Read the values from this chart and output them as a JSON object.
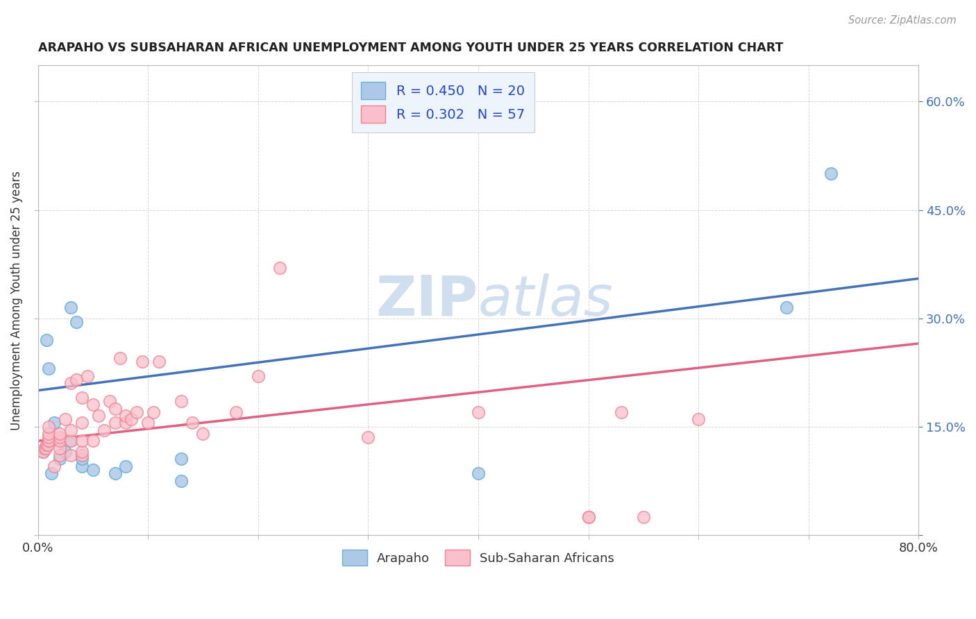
{
  "title": "ARAPAHO VS SUBSAHARAN AFRICAN UNEMPLOYMENT AMONG YOUTH UNDER 25 YEARS CORRELATION CHART",
  "source": "Source: ZipAtlas.com",
  "ylabel": "Unemployment Among Youth under 25 years",
  "xlim": [
    0.0,
    0.8
  ],
  "ylim": [
    0.0,
    0.65
  ],
  "xtick_positions": [
    0.0,
    0.1,
    0.2,
    0.3,
    0.4,
    0.5,
    0.6,
    0.7,
    0.8
  ],
  "xtick_labels": [
    "0.0%",
    "",
    "",
    "",
    "",
    "",
    "",
    "",
    "80.0%"
  ],
  "ytick_positions": [
    0.0,
    0.15,
    0.3,
    0.45,
    0.6
  ],
  "ytick_labels_left": [
    "",
    "",
    "",
    "",
    ""
  ],
  "ytick_labels_right": [
    "",
    "15.0%",
    "30.0%",
    "45.0%",
    "60.0%"
  ],
  "arapaho_R": 0.45,
  "arapaho_N": 20,
  "subsaharan_R": 0.302,
  "subsaharan_N": 57,
  "arapaho_color": "#aec9e8",
  "arapaho_edge_color": "#6aaed6",
  "subsaharan_color": "#f9c0cb",
  "subsaharan_edge_color": "#f08090",
  "blue_line_color": "#4472b8",
  "pink_line_color": "#e06080",
  "watermark_color": "#d0dff0",
  "blue_line_x0": 0.0,
  "blue_line_y0": 0.2,
  "blue_line_x1": 0.8,
  "blue_line_y1": 0.355,
  "pink_line_x0": 0.0,
  "pink_line_y0": 0.13,
  "pink_line_x1": 0.8,
  "pink_line_y1": 0.265,
  "arapaho_x": [
    0.005,
    0.008,
    0.01,
    0.012,
    0.015,
    0.02,
    0.025,
    0.03,
    0.03,
    0.035,
    0.04,
    0.04,
    0.05,
    0.07,
    0.08,
    0.13,
    0.13,
    0.4,
    0.68,
    0.72
  ],
  "arapaho_y": [
    0.115,
    0.27,
    0.23,
    0.085,
    0.155,
    0.105,
    0.115,
    0.13,
    0.315,
    0.295,
    0.095,
    0.105,
    0.09,
    0.085,
    0.095,
    0.075,
    0.105,
    0.085,
    0.315,
    0.5
  ],
  "subsaharan_x": [
    0.005,
    0.006,
    0.007,
    0.008,
    0.009,
    0.01,
    0.01,
    0.01,
    0.01,
    0.01,
    0.015,
    0.02,
    0.02,
    0.02,
    0.02,
    0.02,
    0.025,
    0.03,
    0.03,
    0.03,
    0.03,
    0.035,
    0.04,
    0.04,
    0.04,
    0.04,
    0.04,
    0.045,
    0.05,
    0.05,
    0.055,
    0.06,
    0.065,
    0.07,
    0.07,
    0.075,
    0.08,
    0.08,
    0.085,
    0.09,
    0.095,
    0.1,
    0.105,
    0.11,
    0.13,
    0.14,
    0.15,
    0.18,
    0.2,
    0.22,
    0.3,
    0.4,
    0.5,
    0.5,
    0.53,
    0.55,
    0.6
  ],
  "subsaharan_y": [
    0.115,
    0.12,
    0.12,
    0.125,
    0.125,
    0.13,
    0.13,
    0.135,
    0.14,
    0.15,
    0.095,
    0.11,
    0.12,
    0.13,
    0.135,
    0.14,
    0.16,
    0.11,
    0.13,
    0.145,
    0.21,
    0.215,
    0.11,
    0.115,
    0.13,
    0.155,
    0.19,
    0.22,
    0.13,
    0.18,
    0.165,
    0.145,
    0.185,
    0.155,
    0.175,
    0.245,
    0.155,
    0.165,
    0.16,
    0.17,
    0.24,
    0.155,
    0.17,
    0.24,
    0.185,
    0.155,
    0.14,
    0.17,
    0.22,
    0.37,
    0.135,
    0.17,
    0.025,
    0.025,
    0.17,
    0.025,
    0.16
  ],
  "legend_bg_color": "#eef4fc",
  "legend_text_color": "#2244cc",
  "background_color": "#ffffff",
  "grid_color": "#cccccc"
}
